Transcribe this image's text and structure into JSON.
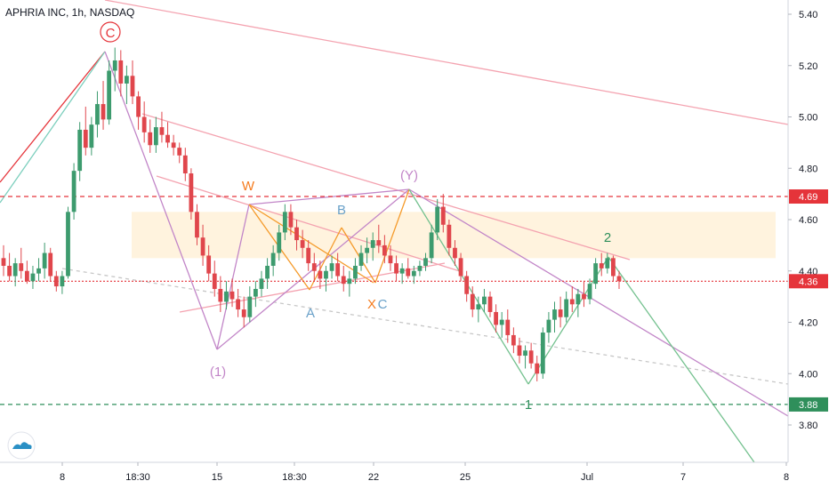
{
  "header": {
    "title": "APHRIA INC, 1h, NASDAQ"
  },
  "colors": {
    "up": "#3d9b6e",
    "down": "#e0464c",
    "bg": "#ffffff",
    "channel": "#f4a3b0",
    "purple": "#c286c8",
    "orange": "#f59b2b",
    "green": "#74c18f",
    "zone": "#fff3de",
    "red_level": "#e5343a",
    "green_level": "#2f8f5b"
  },
  "logo_icon": "tradingview-cloud-icon",
  "chart_data": {
    "type": "candlestick",
    "y_ticks": [
      "5.40",
      "5.20",
      "5.00",
      "4.80",
      "4.60",
      "4.40",
      "4.20",
      "4.00",
      "3.80"
    ],
    "x_ticks": [
      "8",
      "18:30",
      "15",
      "18:30",
      "22",
      "25",
      "Jul",
      "7",
      "8"
    ],
    "ylim": [
      3.62,
      5.48
    ],
    "levels": [
      {
        "value": 4.69,
        "label": "4.69",
        "color": "#e5343a"
      },
      {
        "value": 3.88,
        "label": "3.88",
        "color": "#2f8f5b"
      },
      {
        "value": 4.36,
        "label": "4.36",
        "color": "#e5343a"
      }
    ],
    "zone": {
      "from": 4.45,
      "to": 4.63
    },
    "wave_labels": [
      {
        "text": "C",
        "color": "#e5343a"
      },
      {
        "text": "W",
        "color": "#f57c1f"
      },
      {
        "text": "B",
        "color": "#6aa1c9"
      },
      {
        "text": "(Y)",
        "color": "#c286c8"
      },
      {
        "text": "A",
        "color": "#6aa1c9"
      },
      {
        "text": "X",
        "color": "#f57c1f"
      },
      {
        "text": "C",
        "color": "#6aa1c9"
      },
      {
        "text": "(1)",
        "color": "#c286c8"
      },
      {
        "text": "1",
        "color": "#2f8f5b"
      },
      {
        "text": "2",
        "color": "#2f8f5b"
      }
    ],
    "candles": [
      [
        4.45,
        4.5,
        4.38,
        4.42
      ],
      [
        4.42,
        4.47,
        4.36,
        4.38
      ],
      [
        4.38,
        4.45,
        4.34,
        4.43
      ],
      [
        4.43,
        4.49,
        4.37,
        4.4
      ],
      [
        4.4,
        4.44,
        4.35,
        4.36
      ],
      [
        4.36,
        4.42,
        4.33,
        4.39
      ],
      [
        4.39,
        4.45,
        4.36,
        4.41
      ],
      [
        4.41,
        4.51,
        4.37,
        4.47
      ],
      [
        4.47,
        4.49,
        4.36,
        4.38
      ],
      [
        4.38,
        4.4,
        4.32,
        4.34
      ],
      [
        4.34,
        4.4,
        4.31,
        4.38
      ],
      [
        4.38,
        4.65,
        4.37,
        4.63
      ],
      [
        4.63,
        4.82,
        4.6,
        4.79
      ],
      [
        4.79,
        4.98,
        4.75,
        4.95
      ],
      [
        4.95,
        5.04,
        4.85,
        4.88
      ],
      [
        4.88,
        5.0,
        4.85,
        4.97
      ],
      [
        4.97,
        5.1,
        4.92,
        5.05
      ],
      [
        5.05,
        5.14,
        4.95,
        4.99
      ],
      [
        4.99,
        5.22,
        4.97,
        5.18
      ],
      [
        5.18,
        5.27,
        5.1,
        5.22
      ],
      [
        5.22,
        5.26,
        5.08,
        5.13
      ],
      [
        5.13,
        5.2,
        5.05,
        5.16
      ],
      [
        5.16,
        5.22,
        5.05,
        5.08
      ],
      [
        5.08,
        5.1,
        4.95,
        5.0
      ],
      [
        5.0,
        5.06,
        4.9,
        4.94
      ],
      [
        4.94,
        4.99,
        4.86,
        4.89
      ],
      [
        4.89,
        5.0,
        4.86,
        4.96
      ],
      [
        4.96,
        5.02,
        4.9,
        4.93
      ],
      [
        4.93,
        4.98,
        4.88,
        4.9
      ],
      [
        4.9,
        4.93,
        4.85,
        4.88
      ],
      [
        4.88,
        4.9,
        4.82,
        4.85
      ],
      [
        4.85,
        4.88,
        4.75,
        4.78
      ],
      [
        4.78,
        4.8,
        4.6,
        4.63
      ],
      [
        4.63,
        4.66,
        4.5,
        4.53
      ],
      [
        4.53,
        4.58,
        4.42,
        4.46
      ],
      [
        4.46,
        4.5,
        4.36,
        4.39
      ],
      [
        4.39,
        4.44,
        4.3,
        4.33
      ],
      [
        4.33,
        4.38,
        4.24,
        4.28
      ],
      [
        4.28,
        4.36,
        4.25,
        4.32
      ],
      [
        4.32,
        4.37,
        4.26,
        4.29
      ],
      [
        4.29,
        4.33,
        4.22,
        4.25
      ],
      [
        4.25,
        4.3,
        4.18,
        4.22
      ],
      [
        4.22,
        4.34,
        4.2,
        4.3
      ],
      [
        4.3,
        4.36,
        4.26,
        4.33
      ],
      [
        4.33,
        4.4,
        4.3,
        4.37
      ],
      [
        4.37,
        4.45,
        4.33,
        4.42
      ],
      [
        4.42,
        4.5,
        4.38,
        4.47
      ],
      [
        4.47,
        4.58,
        4.44,
        4.55
      ],
      [
        4.55,
        4.66,
        4.52,
        4.63
      ],
      [
        4.63,
        4.66,
        4.54,
        4.57
      ],
      [
        4.57,
        4.6,
        4.48,
        4.52
      ],
      [
        4.52,
        4.56,
        4.45,
        4.49
      ],
      [
        4.49,
        4.52,
        4.4,
        4.43
      ],
      [
        4.43,
        4.47,
        4.36,
        4.4
      ],
      [
        4.4,
        4.44,
        4.33,
        4.37
      ],
      [
        4.37,
        4.42,
        4.32,
        4.4
      ],
      [
        4.4,
        4.46,
        4.37,
        4.43
      ],
      [
        4.43,
        4.47,
        4.36,
        4.38
      ],
      [
        4.38,
        4.42,
        4.32,
        4.35
      ],
      [
        4.35,
        4.4,
        4.3,
        4.37
      ],
      [
        4.37,
        4.45,
        4.35,
        4.42
      ],
      [
        4.42,
        4.5,
        4.4,
        4.47
      ],
      [
        4.47,
        4.53,
        4.43,
        4.49
      ],
      [
        4.49,
        4.55,
        4.44,
        4.52
      ],
      [
        4.52,
        4.58,
        4.47,
        4.5
      ],
      [
        4.5,
        4.54,
        4.43,
        4.46
      ],
      [
        4.46,
        4.5,
        4.4,
        4.43
      ],
      [
        4.43,
        4.46,
        4.36,
        4.39
      ],
      [
        4.39,
        4.43,
        4.35,
        4.41
      ],
      [
        4.41,
        4.45,
        4.37,
        4.38
      ],
      [
        4.38,
        4.42,
        4.35,
        4.4
      ],
      [
        4.4,
        4.44,
        4.38,
        4.42
      ],
      [
        4.42,
        4.47,
        4.4,
        4.45
      ],
      [
        4.45,
        4.58,
        4.43,
        4.55
      ],
      [
        4.55,
        4.68,
        4.52,
        4.65
      ],
      [
        4.65,
        4.7,
        4.55,
        4.58
      ],
      [
        4.58,
        4.6,
        4.46,
        4.49
      ],
      [
        4.49,
        4.52,
        4.42,
        4.45
      ],
      [
        4.45,
        4.47,
        4.36,
        4.38
      ],
      [
        4.38,
        4.4,
        4.28,
        4.31
      ],
      [
        4.31,
        4.34,
        4.22,
        4.25
      ],
      [
        4.25,
        4.3,
        4.2,
        4.27
      ],
      [
        4.27,
        4.33,
        4.24,
        4.3
      ],
      [
        4.3,
        4.32,
        4.22,
        4.24
      ],
      [
        4.24,
        4.27,
        4.16,
        4.19
      ],
      [
        4.19,
        4.24,
        4.14,
        4.21
      ],
      [
        4.21,
        4.25,
        4.12,
        4.15
      ],
      [
        4.15,
        4.18,
        4.08,
        4.11
      ],
      [
        4.11,
        4.14,
        4.04,
        4.07
      ],
      [
        4.07,
        4.11,
        4.02,
        4.09
      ],
      [
        4.09,
        4.12,
        4.02,
        4.04
      ],
      [
        4.04,
        4.07,
        3.97,
        4.0
      ],
      [
        4.0,
        4.18,
        3.98,
        4.16
      ],
      [
        4.16,
        4.24,
        4.12,
        4.21
      ],
      [
        4.21,
        4.28,
        4.16,
        4.25
      ],
      [
        4.25,
        4.3,
        4.18,
        4.22
      ],
      [
        4.22,
        4.32,
        4.2,
        4.29
      ],
      [
        4.29,
        4.34,
        4.24,
        4.27
      ],
      [
        4.27,
        4.33,
        4.22,
        4.31
      ],
      [
        4.31,
        4.36,
        4.26,
        4.29
      ],
      [
        4.29,
        4.37,
        4.27,
        4.35
      ],
      [
        4.35,
        4.45,
        4.33,
        4.43
      ],
      [
        4.43,
        4.47,
        4.38,
        4.41
      ],
      [
        4.41,
        4.47,
        4.39,
        4.45
      ],
      [
        4.45,
        4.46,
        4.36,
        4.38
      ],
      [
        4.38,
        4.4,
        4.33,
        4.36
      ]
    ]
  }
}
